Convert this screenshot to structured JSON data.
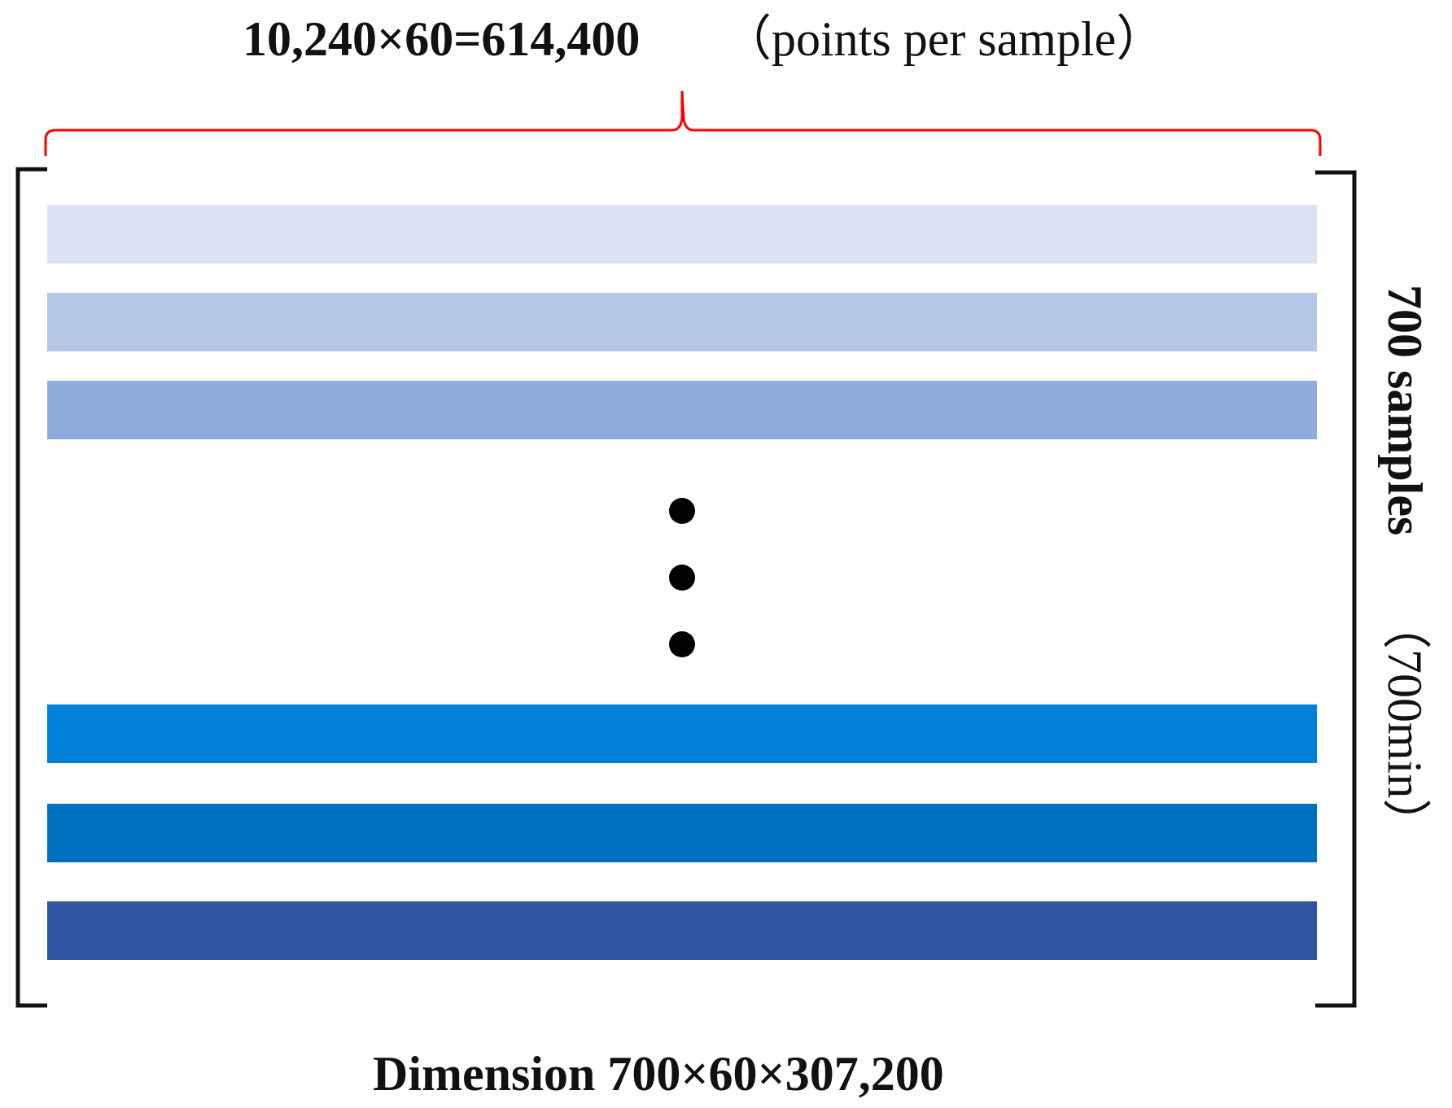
{
  "header": {
    "formula": "10,240×60=614,400",
    "note": "（points per sample）"
  },
  "side_label": {
    "count": "700 samples",
    "duration": "（700min）"
  },
  "footer": {
    "dimension": "Dimension 700×60×307,200"
  },
  "rows": {
    "top": [
      {
        "color": "#dae3f3"
      },
      {
        "color": "#b4c7e7"
      },
      {
        "color": "#8faadc"
      }
    ],
    "bottom": [
      {
        "color": "#0080d8"
      },
      {
        "color": "#0070c0"
      },
      {
        "color": "#2f54a0"
      }
    ]
  },
  "colors": {
    "brace": "#ff0000",
    "bracket": "#111111",
    "dots": "#000000"
  },
  "ellipsis_dots": 3
}
